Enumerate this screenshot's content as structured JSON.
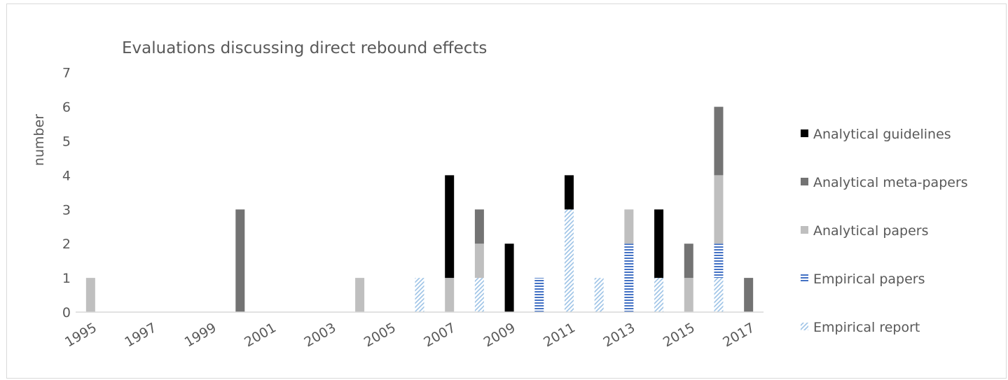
{
  "chart_data": {
    "type": "bar",
    "stacked": true,
    "title": "Evaluations discussing direct rebound effects",
    "xlabel": "",
    "ylabel": "number",
    "ylim": [
      0,
      7
    ],
    "yticks": [
      0,
      1,
      2,
      3,
      4,
      5,
      6,
      7
    ],
    "grid": false,
    "legend": "right",
    "categories": [
      "1995",
      "1996",
      "1997",
      "1998",
      "1999",
      "2000",
      "2001",
      "2002",
      "2003",
      "2004",
      "2005",
      "2006",
      "2007",
      "2008",
      "2009",
      "2010",
      "2011",
      "2012",
      "2013",
      "2014",
      "2015",
      "2016",
      "2017"
    ],
    "xtick_labels": [
      "1995",
      "1997",
      "1999",
      "2001",
      "2003",
      "2005",
      "2007",
      "2009",
      "2011",
      "2013",
      "2015",
      "2017"
    ],
    "series": [
      {
        "name": "Empirical report",
        "pattern": "diagonal",
        "color": "#9dc3e6",
        "values": [
          0,
          0,
          0,
          0,
          0,
          0,
          0,
          0,
          0,
          0,
          0,
          1,
          0,
          1,
          0,
          0,
          3,
          1,
          0,
          1,
          0,
          1,
          0
        ]
      },
      {
        "name": "Empirical  papers",
        "pattern": "horizontal",
        "color": "#4472c4",
        "values": [
          0,
          0,
          0,
          0,
          0,
          0,
          0,
          0,
          0,
          0,
          0,
          0,
          0,
          0,
          0,
          1,
          0,
          0,
          2,
          0,
          0,
          1,
          0
        ]
      },
      {
        "name": "Analytical papers",
        "pattern": "solid",
        "color": "#bfbfbf",
        "values": [
          1,
          0,
          0,
          0,
          0,
          0,
          0,
          0,
          0,
          1,
          0,
          0,
          1,
          1,
          0,
          0,
          0,
          0,
          1,
          0,
          1,
          2,
          0
        ]
      },
      {
        "name": "Analytical meta-papers",
        "pattern": "solid",
        "color": "#737373",
        "values": [
          0,
          0,
          0,
          0,
          0,
          3,
          0,
          0,
          0,
          0,
          0,
          0,
          0,
          1,
          0,
          0,
          0,
          0,
          0,
          0,
          1,
          2,
          1
        ]
      },
      {
        "name": "Analytical guidelines",
        "pattern": "solid",
        "color": "#000000",
        "values": [
          0,
          0,
          0,
          0,
          0,
          0,
          0,
          0,
          0,
          0,
          0,
          0,
          3,
          0,
          2,
          0,
          1,
          0,
          0,
          2,
          0,
          0,
          0
        ]
      }
    ],
    "legend_order": [
      "Analytical guidelines",
      "Analytical meta-papers",
      "Analytical papers",
      "Empirical  papers",
      "Empirical report"
    ]
  }
}
